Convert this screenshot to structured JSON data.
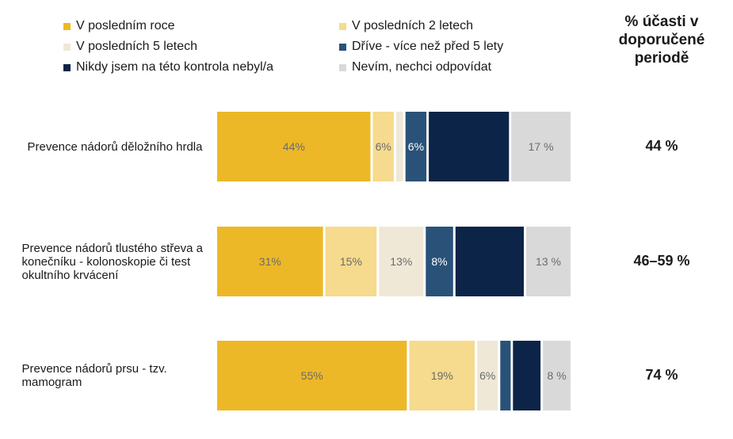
{
  "header": {
    "participation_title": "% účasti v doporučené periodě"
  },
  "legend": [
    {
      "label": "V posledním roce",
      "color": "#EDB827"
    },
    {
      "label": "V posledních 2 letech",
      "color": "#F6DA8D"
    },
    {
      "label": "V posledních 5 letech",
      "color": "#EFE8D7"
    },
    {
      "label": "Dříve - více než před 5 lety",
      "color": "#2A5278"
    },
    {
      "label": "Nikdy jsem na této kontrola nebyl/a",
      "color": "#0C2447"
    },
    {
      "label": "Nevím, nechci odpovídat",
      "color": "#D9D9D9"
    }
  ],
  "chart_data": {
    "type": "bar",
    "orientation": "horizontal",
    "stacked": true,
    "unit": "%",
    "categories": [
      "Prevence nádorů děložního hrdla",
      "Prevence nádorů tlustého střeva a konečníku - kolonoskopie či test okultního krvácení",
      "Prevence nádorů prsu - tzv. mamogram"
    ],
    "series": [
      {
        "name": "V posledním roce",
        "values": [
          44,
          31,
          55
        ],
        "labels": [
          "44%",
          "31%",
          "55%"
        ]
      },
      {
        "name": "V posledních 2 letech",
        "values": [
          6,
          15,
          19
        ],
        "labels": [
          "6%",
          "15%",
          "19%"
        ]
      },
      {
        "name": "V posledních 5 letech",
        "values": [
          2,
          13,
          6
        ],
        "labels": [
          "",
          "13%",
          "6%"
        ]
      },
      {
        "name": "Dříve - více než před 5 lety",
        "values": [
          6,
          8,
          3
        ],
        "labels": [
          "6%",
          "8%",
          ""
        ]
      },
      {
        "name": "Nikdy jsem na této kontrola nebyl/a",
        "values": [
          23,
          20,
          8
        ],
        "labels": [
          "",
          "",
          ""
        ]
      },
      {
        "name": "Nevím, nechci odpovídat",
        "values": [
          17,
          13,
          8
        ],
        "labels": [
          "17 %",
          "13 %",
          "8 %"
        ]
      }
    ],
    "participation": [
      "44 %",
      "46–59 %",
      "74 %"
    ],
    "grid": false,
    "legend_position": "top"
  }
}
